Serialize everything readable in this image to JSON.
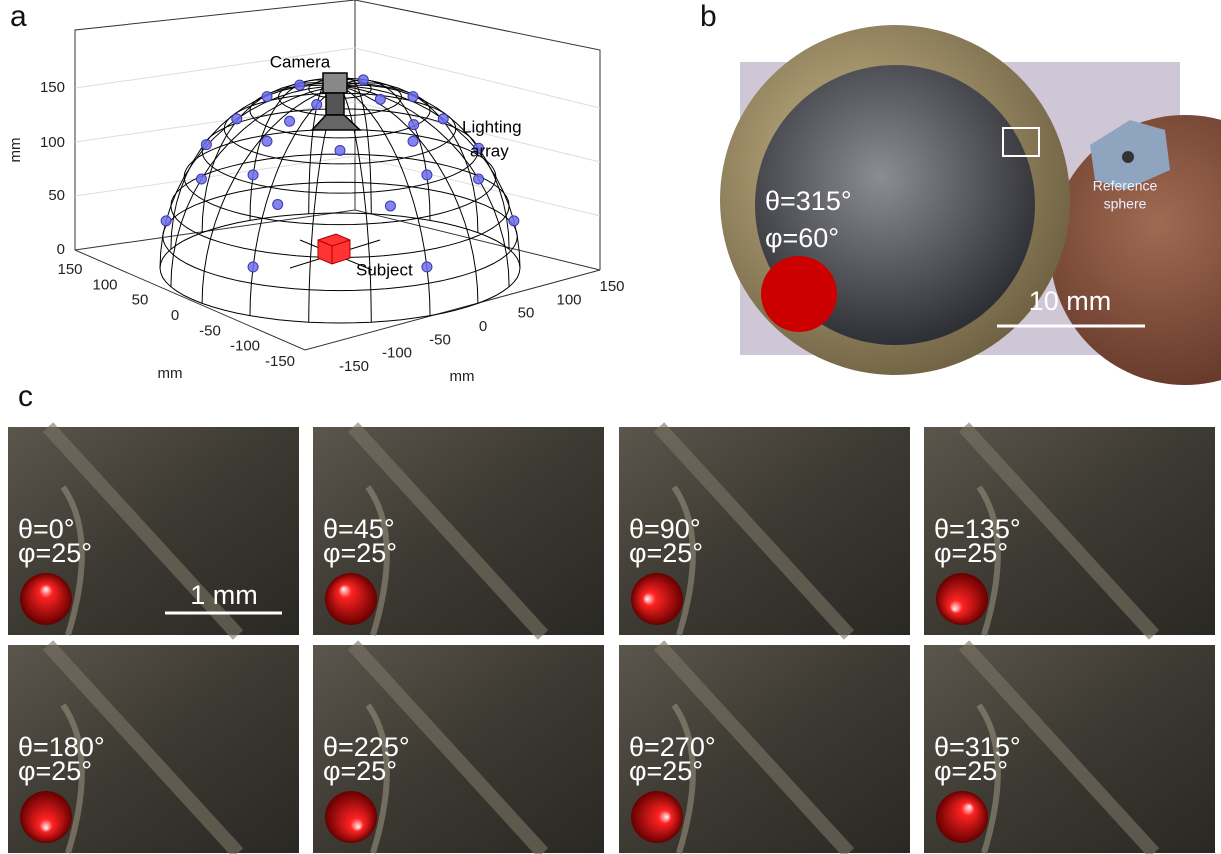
{
  "panel_labels": [
    "a",
    "b",
    "c"
  ],
  "panel_a": {
    "z_axis_label": "mm",
    "x_axis_label": "mm",
    "y_axis_label": "mm",
    "z_ticks": [
      "0",
      "50",
      "100",
      "150"
    ],
    "x_ticks": [
      "150",
      "100",
      "50",
      "0",
      "-50",
      "-100",
      "-150"
    ],
    "y_ticks": [
      "150",
      "100",
      "50",
      "0",
      "-50",
      "-100",
      "-150"
    ],
    "annotations": {
      "camera": "Camera",
      "lighting": [
        "Lighting",
        "array"
      ],
      "subject": "Subject"
    }
  },
  "panel_b": {
    "theta": "θ=315°",
    "phi": "φ=60°",
    "reference": [
      "Reference",
      "sphere"
    ],
    "scale_bar": "10 mm"
  },
  "panel_c": {
    "scale_bar": "1 mm",
    "tiles": [
      {
        "theta": "θ=0°",
        "phi": "φ=25°"
      },
      {
        "theta": "θ=45°",
        "phi": "φ=25°"
      },
      {
        "theta": "θ=90°",
        "phi": "φ=25°"
      },
      {
        "theta": "θ=135°",
        "phi": "φ=25°"
      },
      {
        "theta": "θ=180°",
        "phi": "φ=25°"
      },
      {
        "theta": "θ=225°",
        "phi": "φ=25°"
      },
      {
        "theta": "θ=270°",
        "phi": "φ=25°"
      },
      {
        "theta": "θ=315°",
        "phi": "φ=25°"
      }
    ]
  }
}
